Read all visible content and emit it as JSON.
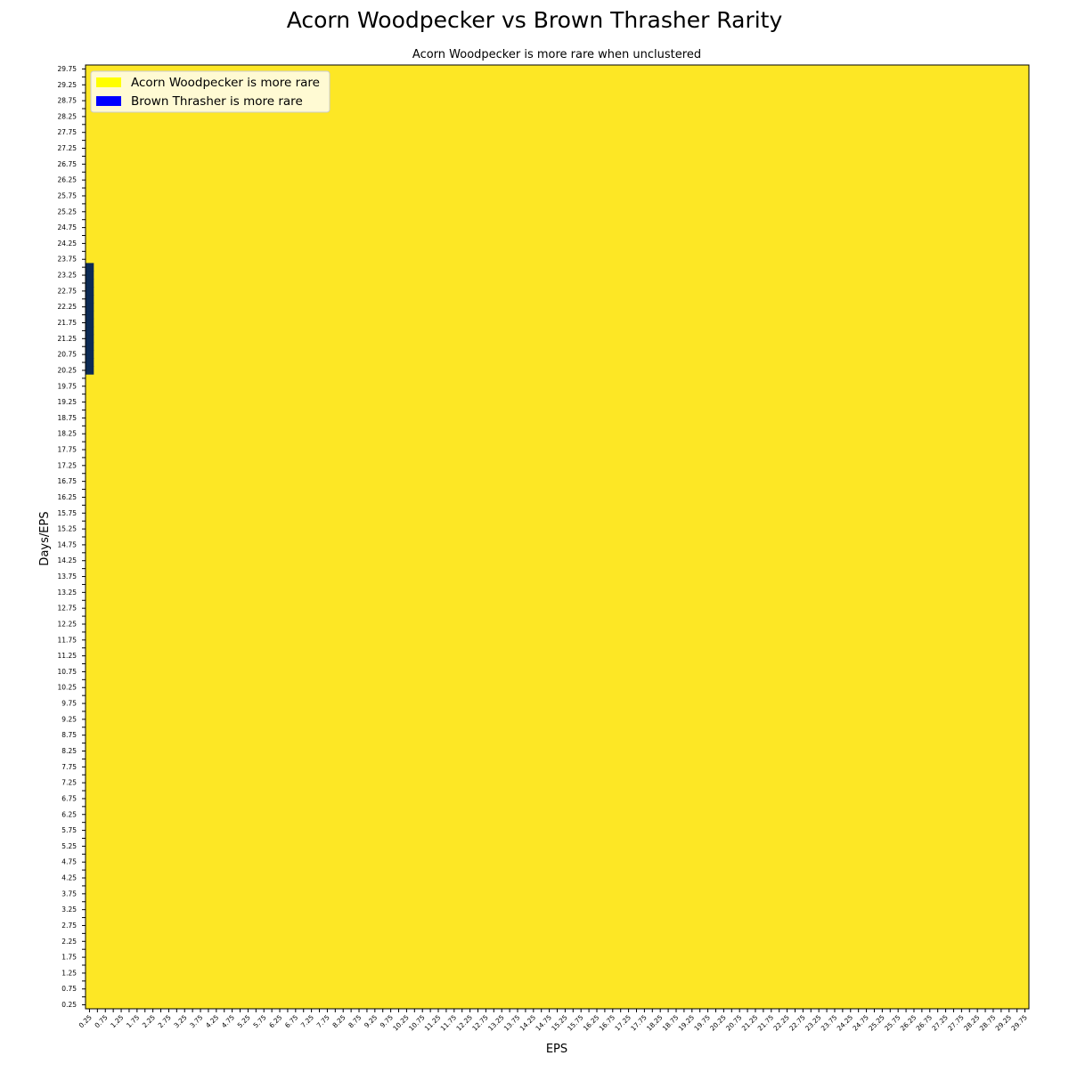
{
  "chart_data": {
    "type": "heatmap",
    "title": "Acorn Woodpecker vs Brown Thrasher Rarity",
    "subtitle": "Acorn Woodpecker is more rare when unclustered",
    "xlabel": "EPS",
    "ylabel": "Days/EPS",
    "x_range": [
      0.25,
      29.75
    ],
    "y_range": [
      0.25,
      29.75
    ],
    "x_step": 0.25,
    "y_step": 0.25,
    "tick_every": 0.5,
    "legend": {
      "placement": "top-left",
      "entries": [
        {
          "label": "Acorn Woodpecker is more rare",
          "color": "#ffff00"
        },
        {
          "label": "Brown Thrasher is more rare",
          "color": "#0000ff"
        }
      ]
    },
    "cell_colors": {
      "acorn_more_rare": "#fde725",
      "brown_more_rare": "#0d2b55"
    },
    "default_value": "acorn_more_rare",
    "exceptions": [
      {
        "x": 0.25,
        "y_from": 20.25,
        "y_to": 23.5,
        "value": "brown_more_rare"
      }
    ]
  }
}
